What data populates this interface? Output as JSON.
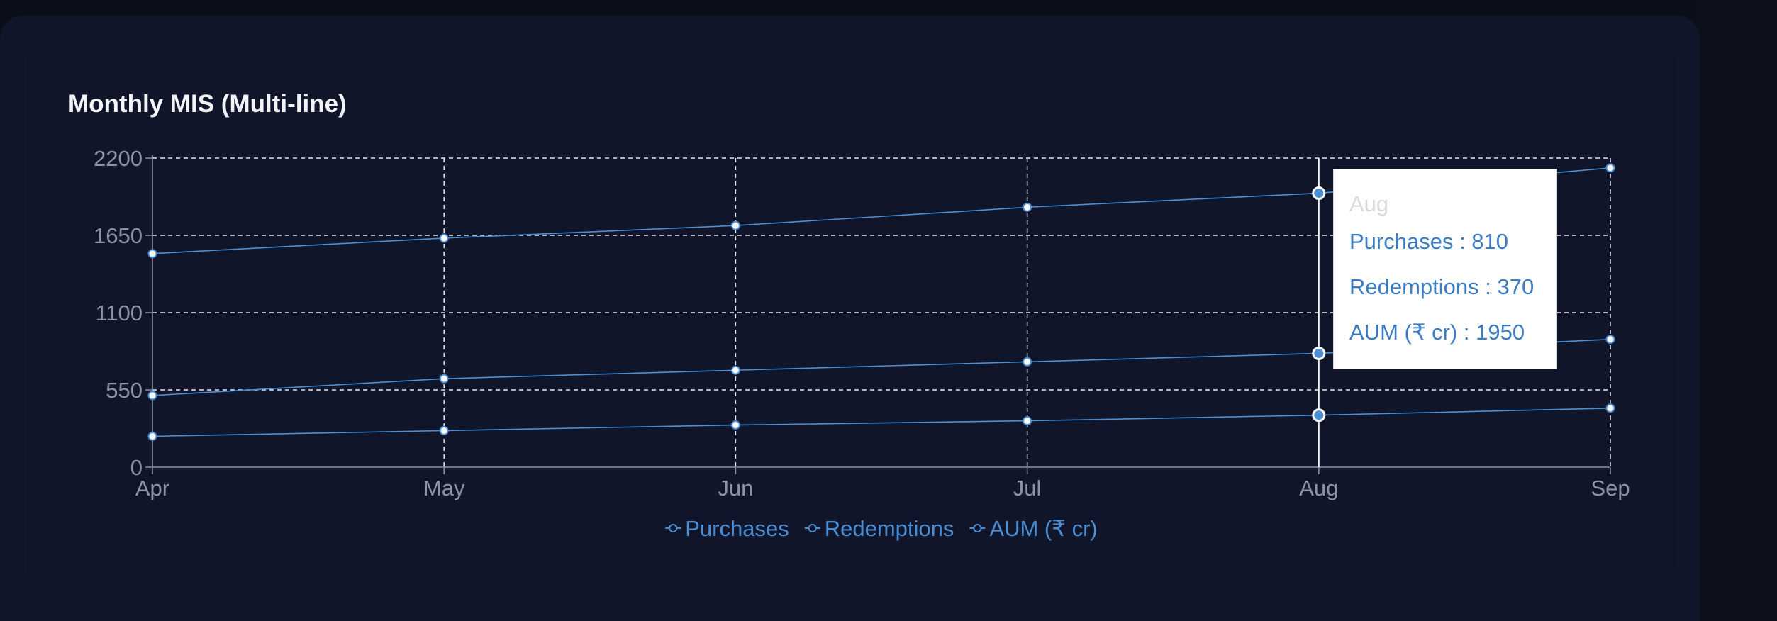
{
  "card": {
    "title": "Monthly MIS (Multi-line)"
  },
  "colors": {
    "line": "#4a8fd6",
    "grid": "#e6e8ee",
    "axis": "#8b93a8",
    "background": "#10152a"
  },
  "chart_data": {
    "type": "line",
    "title": "Monthly MIS (Multi-line)",
    "xlabel": "",
    "ylabel": "",
    "categories": [
      "Apr",
      "May",
      "Jun",
      "Jul",
      "Aug",
      "Sep"
    ],
    "yticks": [
      0,
      550,
      1100,
      1650,
      2200
    ],
    "ylim": [
      0,
      2200
    ],
    "grid": true,
    "legend_position": "bottom",
    "series": [
      {
        "name": "Purchases",
        "values": [
          510,
          630,
          690,
          750,
          810,
          910
        ]
      },
      {
        "name": "Redemptions",
        "values": [
          220,
          260,
          300,
          330,
          370,
          420
        ]
      },
      {
        "name": "AUM (₹ cr)",
        "values": [
          1520,
          1630,
          1720,
          1850,
          1950,
          2130
        ]
      }
    ]
  },
  "tooltip": {
    "title": "Aug",
    "lines": [
      "Purchases : 810",
      "Redemptions : 370",
      "AUM (₹ cr) : 1950"
    ]
  }
}
